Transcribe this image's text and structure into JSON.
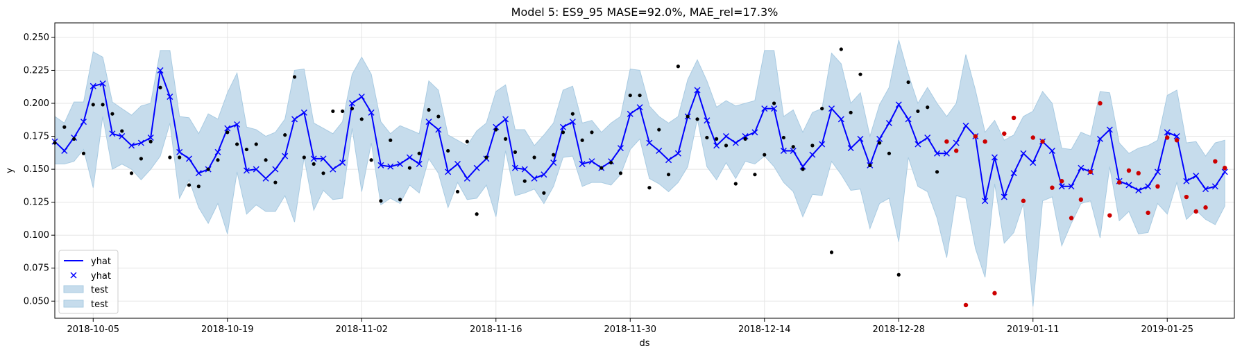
{
  "chart_data": {
    "type": "line",
    "title": "Model 5: ES9_95 MASE=92.0%, MAE_rel=17.3%",
    "xlabel": "ds",
    "ylabel": "y",
    "ylim": [
      0.037,
      0.261
    ],
    "xlim": [
      "2018-10-01",
      "2019-02-01"
    ],
    "grid": true,
    "legend_position": "lower-left",
    "x_ticks": [
      "2018-10-05",
      "2018-10-19",
      "2018-11-02",
      "2018-11-16",
      "2018-11-30",
      "2018-12-14",
      "2018-12-28",
      "2019-01-11",
      "2019-01-25"
    ],
    "y_ticks": [
      "0.050",
      "0.075",
      "0.100",
      "0.125",
      "0.150",
      "0.175",
      "0.200",
      "0.225",
      "0.250"
    ],
    "legend": [
      "yhat",
      "yhat",
      "test",
      "test"
    ],
    "colors": {
      "line": "#0000ff",
      "band_fill": "#c6dcec",
      "band_edge": "#a9cbe2",
      "actual": "#000000",
      "test_actual": "#cc0000",
      "grid": "#e5e5e5"
    },
    "start_date": "2018-10-01",
    "test_start_index": 93,
    "yhat": [
      0.171,
      0.164,
      0.174,
      0.186,
      0.213,
      0.215,
      0.177,
      0.175,
      0.168,
      0.17,
      0.174,
      0.225,
      0.205,
      0.163,
      0.158,
      0.147,
      0.15,
      0.163,
      0.181,
      0.184,
      0.149,
      0.15,
      0.143,
      0.15,
      0.16,
      0.188,
      0.193,
      0.158,
      0.158,
      0.15,
      0.155,
      0.2,
      0.205,
      0.193,
      0.153,
      0.152,
      0.154,
      0.159,
      0.154,
      0.186,
      0.18,
      0.148,
      0.154,
      0.143,
      0.151,
      0.158,
      0.182,
      0.188,
      0.151,
      0.15,
      0.143,
      0.146,
      0.155,
      0.182,
      0.186,
      0.154,
      0.156,
      0.151,
      0.156,
      0.166,
      0.192,
      0.197,
      0.17,
      0.164,
      0.157,
      0.162,
      0.19,
      0.21,
      0.187,
      0.168,
      0.175,
      0.17,
      0.175,
      0.178,
      0.196,
      0.196,
      0.164,
      0.164,
      0.152,
      0.161,
      0.169,
      0.196,
      0.188,
      0.166,
      0.173,
      0.153,
      0.173,
      0.185,
      0.199,
      0.188,
      0.169,
      0.174,
      0.162,
      0.162,
      0.17,
      0.183,
      0.175,
      0.126,
      0.159,
      0.129,
      0.147,
      0.162,
      0.155,
      0.171,
      0.164,
      0.137,
      0.137,
      0.151,
      0.148,
      0.173,
      0.18,
      0.141,
      0.138,
      0.134,
      0.137,
      0.148,
      0.178,
      0.175,
      0.141,
      0.145,
      0.135,
      0.137,
      0.148
    ],
    "upper": [
      0.19,
      0.185,
      0.201,
      0.201,
      0.239,
      0.235,
      0.201,
      0.196,
      0.191,
      0.198,
      0.2,
      0.24,
      0.24,
      0.19,
      0.189,
      0.177,
      0.192,
      0.188,
      0.208,
      0.223,
      0.182,
      0.18,
      0.175,
      0.178,
      0.188,
      0.225,
      0.226,
      0.185,
      0.181,
      0.177,
      0.186,
      0.222,
      0.235,
      0.222,
      0.186,
      0.177,
      0.183,
      0.18,
      0.177,
      0.217,
      0.21,
      0.176,
      0.172,
      0.168,
      0.179,
      0.185,
      0.209,
      0.214,
      0.18,
      0.18,
      0.168,
      0.176,
      0.185,
      0.21,
      0.213,
      0.185,
      0.187,
      0.178,
      0.185,
      0.19,
      0.226,
      0.225,
      0.198,
      0.19,
      0.185,
      0.19,
      0.218,
      0.233,
      0.217,
      0.197,
      0.202,
      0.198,
      0.2,
      0.202,
      0.24,
      0.24,
      0.19,
      0.195,
      0.178,
      0.193,
      0.196,
      0.238,
      0.23,
      0.2,
      0.208,
      0.175,
      0.199,
      0.212,
      0.248,
      0.222,
      0.2,
      0.212,
      0.2,
      0.19,
      0.2,
      0.237,
      0.21,
      0.178,
      0.187,
      0.172,
      0.176,
      0.19,
      0.194,
      0.209,
      0.2,
      0.166,
      0.165,
      0.178,
      0.175,
      0.209,
      0.208,
      0.17,
      0.162,
      0.166,
      0.168,
      0.172,
      0.206,
      0.21,
      0.17,
      0.171,
      0.16,
      0.17,
      0.172
    ],
    "lower": [
      0.154,
      0.154,
      0.156,
      0.165,
      0.136,
      0.19,
      0.15,
      0.154,
      0.15,
      0.142,
      0.15,
      0.16,
      0.185,
      0.128,
      0.142,
      0.121,
      0.109,
      0.124,
      0.101,
      0.148,
      0.116,
      0.123,
      0.118,
      0.118,
      0.13,
      0.11,
      0.159,
      0.119,
      0.134,
      0.127,
      0.128,
      0.181,
      0.133,
      0.17,
      0.123,
      0.128,
      0.124,
      0.138,
      0.132,
      0.158,
      0.147,
      0.121,
      0.14,
      0.127,
      0.128,
      0.138,
      0.114,
      0.164,
      0.13,
      0.132,
      0.135,
      0.124,
      0.137,
      0.159,
      0.16,
      0.137,
      0.14,
      0.14,
      0.138,
      0.146,
      0.165,
      0.173,
      0.143,
      0.139,
      0.133,
      0.14,
      0.152,
      0.188,
      0.152,
      0.142,
      0.155,
      0.143,
      0.156,
      0.154,
      0.16,
      0.152,
      0.14,
      0.133,
      0.114,
      0.131,
      0.13,
      0.156,
      0.146,
      0.134,
      0.135,
      0.105,
      0.124,
      0.128,
      0.095,
      0.159,
      0.137,
      0.133,
      0.113,
      0.083,
      0.13,
      0.128,
      0.09,
      0.068,
      0.139,
      0.094,
      0.102,
      0.124,
      0.046,
      0.126,
      0.129,
      0.092,
      0.109,
      0.124,
      0.126,
      0.098,
      0.152,
      0.111,
      0.118,
      0.101,
      0.102,
      0.124,
      0.116,
      0.14,
      0.112,
      0.119,
      0.112,
      0.108,
      0.122
    ],
    "actual": [
      0.17,
      0.182,
      0.173,
      0.162,
      0.199,
      0.199,
      0.192,
      0.179,
      0.147,
      0.158,
      0.171,
      0.212,
      0.159,
      0.159,
      0.138,
      0.137,
      0.15,
      0.157,
      0.178,
      0.169,
      0.165,
      0.169,
      0.157,
      0.14,
      0.176,
      0.22,
      0.159,
      0.154,
      0.147,
      0.194,
      0.194,
      0.196,
      0.188,
      0.157,
      0.126,
      0.172,
      0.127,
      0.151,
      0.162,
      0.195,
      0.19,
      0.164,
      0.133,
      0.171,
      0.116,
      0.159,
      0.18,
      0.173,
      0.163,
      0.141,
      0.159,
      0.132,
      0.161,
      0.178,
      0.192,
      0.172,
      0.178,
      0.151,
      0.155,
      0.147,
      0.206,
      0.206,
      0.136,
      0.18,
      0.146,
      0.228,
      0.19,
      0.188,
      0.174,
      0.173,
      0.168,
      0.139,
      0.173,
      0.146,
      0.161,
      0.2,
      0.174,
      0.167,
      0.15,
      0.168,
      0.196,
      0.087,
      0.241,
      0.193,
      0.222,
      0.153,
      0.17,
      0.162,
      0.07,
      0.216,
      0.194,
      0.197,
      0.148,
      0.171,
      0.164,
      0.047,
      0.175,
      0.171,
      0.056,
      0.177,
      0.189,
      0.126,
      0.174,
      0.171,
      0.136,
      0.141,
      0.113,
      0.127,
      0.148,
      0.2,
      0.115,
      0.14,
      0.149,
      0.147,
      0.117,
      0.137,
      0.174,
      0.172,
      0.129,
      0.118,
      0.121,
      0.156,
      0.151
    ]
  }
}
